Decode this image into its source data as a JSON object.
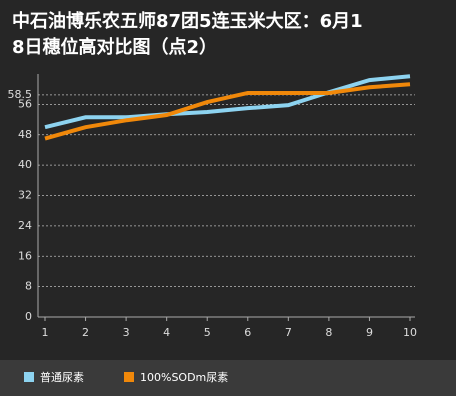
{
  "chart_data": {
    "type": "line",
    "title": "中石油博乐农五师87团5连玉米大区：6月18日穗位高对比图（点2）",
    "x": [
      1,
      2,
      3,
      4,
      5,
      6,
      7,
      8,
      9,
      10
    ],
    "xlim": [
      1,
      10
    ],
    "ylim": [
      0,
      64
    ],
    "yticks": [
      0,
      8,
      16,
      24,
      32,
      40,
      48,
      56,
      58.5
    ],
    "grid": true,
    "series": [
      {
        "name": "普通尿素",
        "color": "#8dd3f0",
        "values": [
          50,
          52.6,
          52.6,
          53.4,
          54,
          55,
          55.8,
          59.2,
          62.4,
          63.4
        ]
      },
      {
        "name": "100%SODm尿素",
        "color": "#f0880a",
        "values": [
          47,
          50,
          51.8,
          53.2,
          56.6,
          59,
          59,
          59,
          60.5,
          61.3
        ]
      }
    ]
  }
}
